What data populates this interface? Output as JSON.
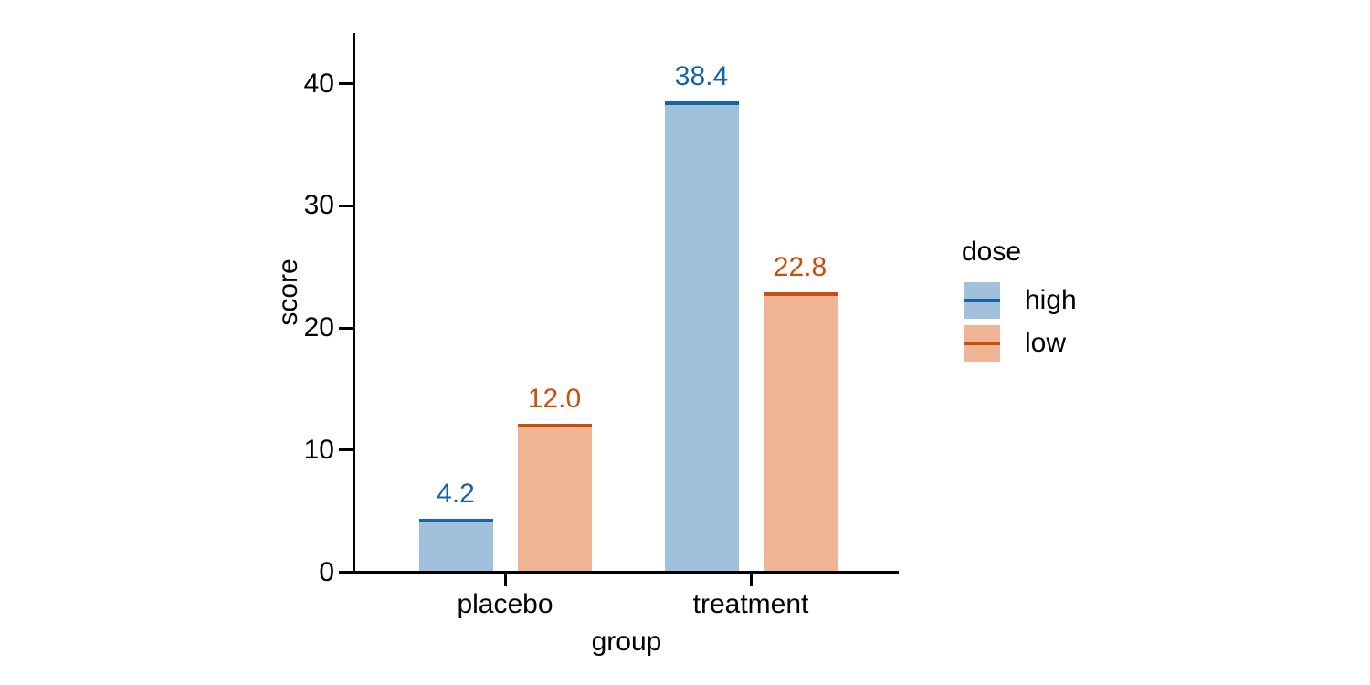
{
  "chart_data": {
    "type": "bar",
    "title": "",
    "xlabel": "group",
    "ylabel": "score",
    "categories": [
      "placebo",
      "treatment"
    ],
    "series": [
      {
        "name": "high",
        "values": [
          4.2,
          38.4
        ],
        "value_labels": [
          "4.2",
          "38.4"
        ],
        "fill_color": "#a0c0dc",
        "edge_color": "#1763a8"
      },
      {
        "name": "low",
        "values": [
          12.0,
          22.8
        ],
        "value_labels": [
          "12.0",
          "22.8"
        ],
        "fill_color": "#efb595",
        "edge_color": "#c8500c"
      }
    ],
    "yticks": [
      "0",
      "10",
      "20",
      "30",
      "40"
    ],
    "ytick_values": [
      0,
      10,
      20,
      30,
      40
    ],
    "ylim": [
      0,
      44.2
    ],
    "grid": false,
    "legend": {
      "title": "dose",
      "position": "right",
      "entries": [
        "high",
        "low"
      ]
    },
    "axis_color": "#000000",
    "text_color": "#000000",
    "background_color": "#ffffff"
  }
}
